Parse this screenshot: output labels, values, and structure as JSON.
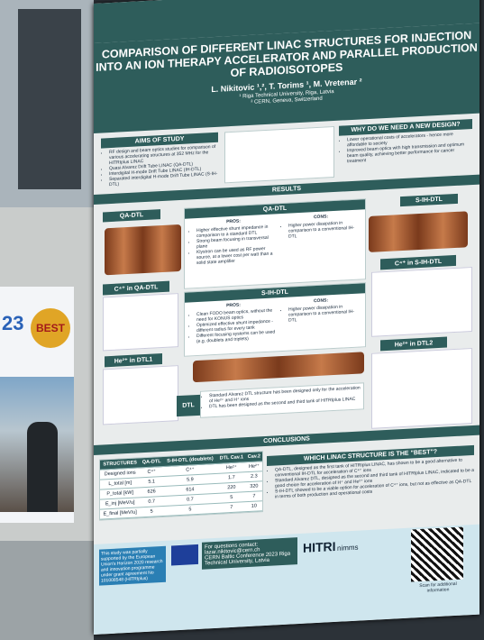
{
  "background": {
    "screen_number": "23",
    "badge": "BEST"
  },
  "poster": {
    "title": "COMPARISON OF DIFFERENT LINAC STRUCTURES FOR INJECTION INTO AN ION THERAPY ACCELERATOR AND PARALLEL PRODUCTION OF RADIOISOTOPES",
    "authors": "L. Nikitovic ¹,², T. Torims ¹, M. Vretenar ²",
    "affiliations": [
      "¹ Riga Technical University, Riga, Latvia",
      "² CERN, Geneva, Switzerland"
    ],
    "aims": {
      "title": "AIMS OF STUDY",
      "items": [
        "RF design and beam optics studies for comparison of various accelerating structures at 352 MHz for the HITRIplus LINAC",
        "Quasi Alvarez Drift Tube LINAC (QA-DTL)",
        "Interdigital H-mode Drift Tube LINAC (IH-DTL)",
        "Separated interdigital H-mode Drift Tube LINAC (S-IH-DTL)"
      ]
    },
    "why": {
      "title": "WHY DO WE NEED A NEW DESIGN?",
      "items": [
        "Lower operational costs of accelerators - hence more affordable to society",
        "Improved beam optics with high transmission and optimum beam quality, achieving better performance for cancer treatment"
      ]
    },
    "results": {
      "title": "RESULTS",
      "qa_label": "QA-DTL",
      "sih_label": "S-IH-DTL",
      "cqa_label": "C⁴⁺ in QA-DTL",
      "csih_label": "C⁴⁺ in S-IH-DTL",
      "he1_label": "He²⁺ in DTL1",
      "he2_label": "He²⁺ in DTL2",
      "dtl_label": "DTL",
      "qa": {
        "title": "QA-DTL",
        "pros_title": "PROS:",
        "pros": [
          "Higher effective shunt impedance in comparison to a standard DTL",
          "Strong beam focusing in transversal plane",
          "Klystron can be used as RF power source, at a lower cost per watt than a solid state amplifier"
        ],
        "cons_title": "CONS:",
        "cons": [
          "Higher power dissipation in comparison to a conventional IH-DTL"
        ]
      },
      "sih": {
        "title": "S-IH-DTL",
        "pros_title": "PROS:",
        "pros": [
          "Clean FODO beam optics, without the need for KONUS optics",
          "Optimized effective shunt impedance - different radius for every tank",
          "Different focusing systems can be used (e.g. doublets and triplets)"
        ],
        "cons_title": "CONS:",
        "cons": [
          "Higher power dissipation in comparison to a conventional IH-DTL"
        ]
      },
      "dtl": [
        "Standard Alvarez DTL structure has been designed only for the acceleration of He²⁺ and H⁺ ions",
        "DTL has been designed as the second and third tank of HITRIplus LINAC"
      ]
    },
    "conclusions": {
      "title": "CONCLUSIONS",
      "table": {
        "header": [
          "STRUCTURES",
          "QA-DTL",
          "S-IH-DTL (doublets)",
          "DTL Cav.1",
          "Cav.2"
        ],
        "rows": [
          [
            "Designed ions",
            "C⁴⁺",
            "C⁴⁺",
            "He²⁺",
            "He²⁺"
          ],
          [
            "L_total [m]",
            "5.1",
            "5.9",
            "1.7",
            "2.3"
          ],
          [
            "P_total [kW]",
            "626",
            "614",
            "220",
            "320"
          ],
          [
            "E_inj [MeV/u]",
            "0.7",
            "0.7",
            "5",
            "7"
          ],
          [
            "E_final [MeV/u]",
            "5",
            "5",
            "7",
            "10"
          ]
        ]
      },
      "best_title": "WHICH LINAC STRUCTURE IS THE \"BEST\"?",
      "best": [
        "QA-DTL, designed as the first tank of HITRIplus LINAC, has shown to be a good alternative to conventional IH-DTL for acceleration of C⁴⁺ ions",
        "Standard Alvarez DTL, designed as the second and third tank of HITRIplus LINAC, indicated to be a good choice for acceleration of H⁺ and He²⁺ ions",
        "S-IH-DTL showed to be a viable option for acceleration of C⁴⁺ ions, but not as effective as QA-DTL in terms of both production and operational costs"
      ]
    },
    "footer": {
      "funding": "This study was partially supported by the European Union's Horizon 2020 research and innovation programme under grant agreement No 101008548 (HITRIplus)",
      "contact_title": "For questions contact:",
      "contact": "lazar.nikitovic@cern.ch",
      "conference": "CERN Baltic Conference 2023 Riga Technical University, Latvia",
      "logo1": "HITRI",
      "logo2": "nimms",
      "qr_caption": "Scan for additional information"
    }
  }
}
